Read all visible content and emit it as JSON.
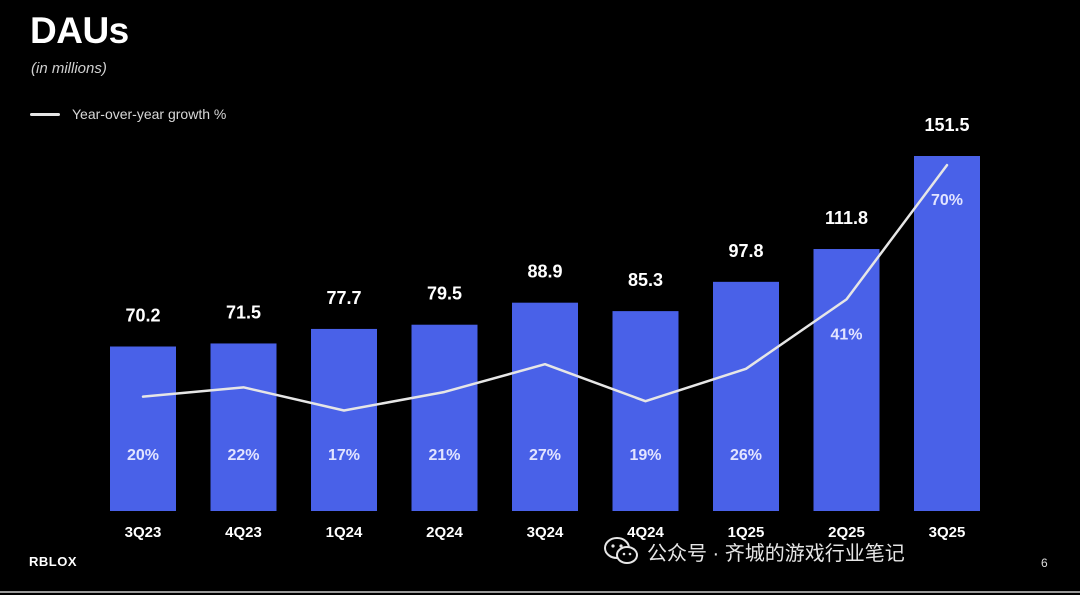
{
  "title": "DAUs",
  "subtitle": "(in millions)",
  "legend": {
    "label": "Year-over-year growth %"
  },
  "chart_data": {
    "type": "bar",
    "title": "DAUs",
    "subtitle": "(in millions)",
    "categories": [
      "3Q23",
      "4Q23",
      "1Q24",
      "2Q24",
      "3Q24",
      "4Q24",
      "1Q25",
      "2Q25",
      "3Q25"
    ],
    "series": [
      {
        "name": "DAUs",
        "unit": "millions",
        "color": "#4961e8",
        "values": [
          70.2,
          71.5,
          77.7,
          79.5,
          88.9,
          85.3,
          97.8,
          111.8,
          151.5
        ],
        "labels": [
          "70.2",
          "71.5",
          "77.7",
          "79.5",
          "88.9",
          "85.3",
          "97.8",
          "111.8",
          "151.5"
        ]
      },
      {
        "name": "Year-over-year growth %",
        "type": "line",
        "color": "#e6e6e6",
        "values": [
          20,
          22,
          17,
          21,
          27,
          19,
          26,
          41,
          70
        ],
        "labels": [
          "20%",
          "22%",
          "17%",
          "21%",
          "27%",
          "19%",
          "26%",
          "41%",
          "70%"
        ]
      }
    ],
    "ylim": [
      0,
      160
    ],
    "grid": false,
    "legend_position": "top-left"
  },
  "footer": {
    "logo": "RBLOX",
    "watermark": "公众号 · 齐城的游戏行业笔记",
    "page_number": "6"
  }
}
